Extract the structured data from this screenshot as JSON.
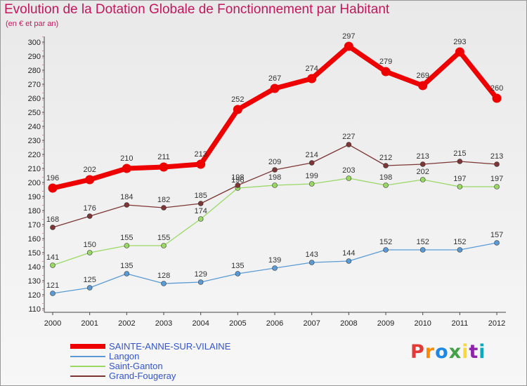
{
  "title": "Evolution de la Dotation Globale de Fonctionnement par Habitant",
  "subtitle": "(en € et par an)",
  "logo": {
    "text": "Proxiti",
    "colors": [
      "#e53935",
      "#fb8c00",
      "#1e88e5",
      "#43a047",
      "#fdd835",
      "#8e24aa",
      "#00acc1"
    ]
  },
  "chart_data": {
    "type": "line",
    "x": [
      2000,
      2001,
      2002,
      2003,
      2004,
      2005,
      2006,
      2007,
      2008,
      2009,
      2010,
      2011,
      2012
    ],
    "ylim": [
      110,
      300
    ],
    "yticks": [
      110,
      120,
      130,
      140,
      150,
      160,
      170,
      180,
      190,
      200,
      210,
      220,
      230,
      240,
      250,
      260,
      270,
      280,
      290,
      300
    ],
    "grid": false,
    "legend_position": "bottom-left",
    "series": [
      {
        "name": "SAINTE-ANNE-SUR-VILAINE",
        "color": "#ee0000",
        "values": [
          196,
          202,
          210,
          211,
          213,
          252,
          267,
          274,
          297,
          279,
          269,
          293,
          260
        ]
      },
      {
        "name": "Langon",
        "color": "#5b9bd5",
        "values": [
          121,
          125,
          135,
          128,
          129,
          135,
          139,
          143,
          144,
          152,
          152,
          152,
          157
        ]
      },
      {
        "name": "Saint-Ganton",
        "color": "#9ad866",
        "values": [
          141,
          150,
          155,
          155,
          174,
          196,
          198,
          199,
          203,
          198,
          202,
          197,
          197
        ]
      },
      {
        "name": "Grand-Fougeray",
        "color": "#7d3535",
        "values": [
          168,
          176,
          184,
          182,
          185,
          198,
          209,
          214,
          227,
          212,
          213,
          215,
          213
        ]
      }
    ]
  }
}
